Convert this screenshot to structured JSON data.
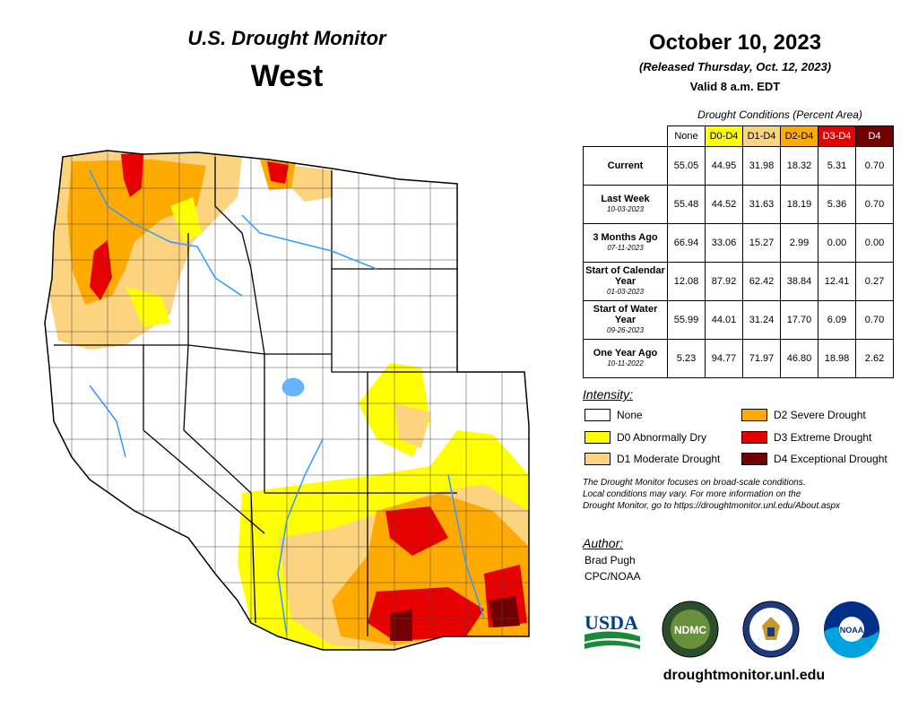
{
  "header": {
    "title": "U.S. Drought Monitor",
    "region": "West",
    "date": "October 10, 2023",
    "released": "(Released Thursday, Oct. 12, 2023)",
    "valid": "Valid 8 a.m. EDT"
  },
  "table": {
    "caption": "Drought Conditions (Percent Area)",
    "columns": [
      "None",
      "D0-D4",
      "D1-D4",
      "D2-D4",
      "D3-D4",
      "D4"
    ],
    "column_colors": [
      "#ffffff",
      "#ffff00",
      "#fcd37f",
      "#ffaa00",
      "#e60000",
      "#730000"
    ],
    "rows": [
      {
        "label": "Current",
        "sub": "",
        "values": [
          "55.05",
          "44.95",
          "31.98",
          "18.32",
          "5.31",
          "0.70"
        ]
      },
      {
        "label": "Last Week",
        "sub": "10-03-2023",
        "values": [
          "55.48",
          "44.52",
          "31.63",
          "18.19",
          "5.36",
          "0.70"
        ]
      },
      {
        "label": "3 Months Ago",
        "sub": "07-11-2023",
        "values": [
          "66.94",
          "33.06",
          "15.27",
          "2.99",
          "0.00",
          "0.00"
        ]
      },
      {
        "label": "Start of Calendar Year",
        "sub": "01-03-2023",
        "values": [
          "12.08",
          "87.92",
          "62.42",
          "38.84",
          "12.41",
          "0.27"
        ]
      },
      {
        "label": "Start of Water Year",
        "sub": "09-26-2023",
        "values": [
          "55.99",
          "44.01",
          "31.24",
          "17.70",
          "6.09",
          "0.70"
        ]
      },
      {
        "label": "One Year Ago",
        "sub": "10-11-2022",
        "values": [
          "5.23",
          "94.77",
          "71.97",
          "46.80",
          "18.98",
          "2.62"
        ]
      }
    ]
  },
  "legend": {
    "heading": "Intensity:",
    "items": [
      {
        "label": "None",
        "color": "#ffffff"
      },
      {
        "label": "D0 Abnormally Dry",
        "color": "#ffff00"
      },
      {
        "label": "D1 Moderate Drought",
        "color": "#fcd37f"
      },
      {
        "label": "D2 Severe Drought",
        "color": "#ffaa00"
      },
      {
        "label": "D3 Extreme Drought",
        "color": "#e60000"
      },
      {
        "label": "D4 Exceptional Drought",
        "color": "#730000"
      }
    ]
  },
  "note": {
    "line1": "The Drought Monitor focuses on broad-scale conditions.",
    "line2": "Local conditions may vary. For more information on the",
    "line3": "Drought Monitor, go to https://droughtmonitor.unl.edu/About.aspx"
  },
  "author": {
    "heading": "Author:",
    "name": "Brad Pugh",
    "org": "CPC/NOAA"
  },
  "logos": {
    "usda": "USDA",
    "ndmc": "NDMC",
    "noaa": "NOAA",
    "icons": [
      "usda-logo-icon",
      "ndmc-logo-icon",
      "commerce-seal-icon",
      "noaa-logo-icon"
    ]
  },
  "website": "droughtmonitor.unl.edu",
  "map": {
    "region_name": "West",
    "category_colors": {
      "none": "#ffffff",
      "D0": "#ffff00",
      "D1": "#fcd37f",
      "D2": "#ffaa00",
      "D3": "#e60000",
      "D4": "#730000"
    },
    "water_color": "#3399ff"
  }
}
